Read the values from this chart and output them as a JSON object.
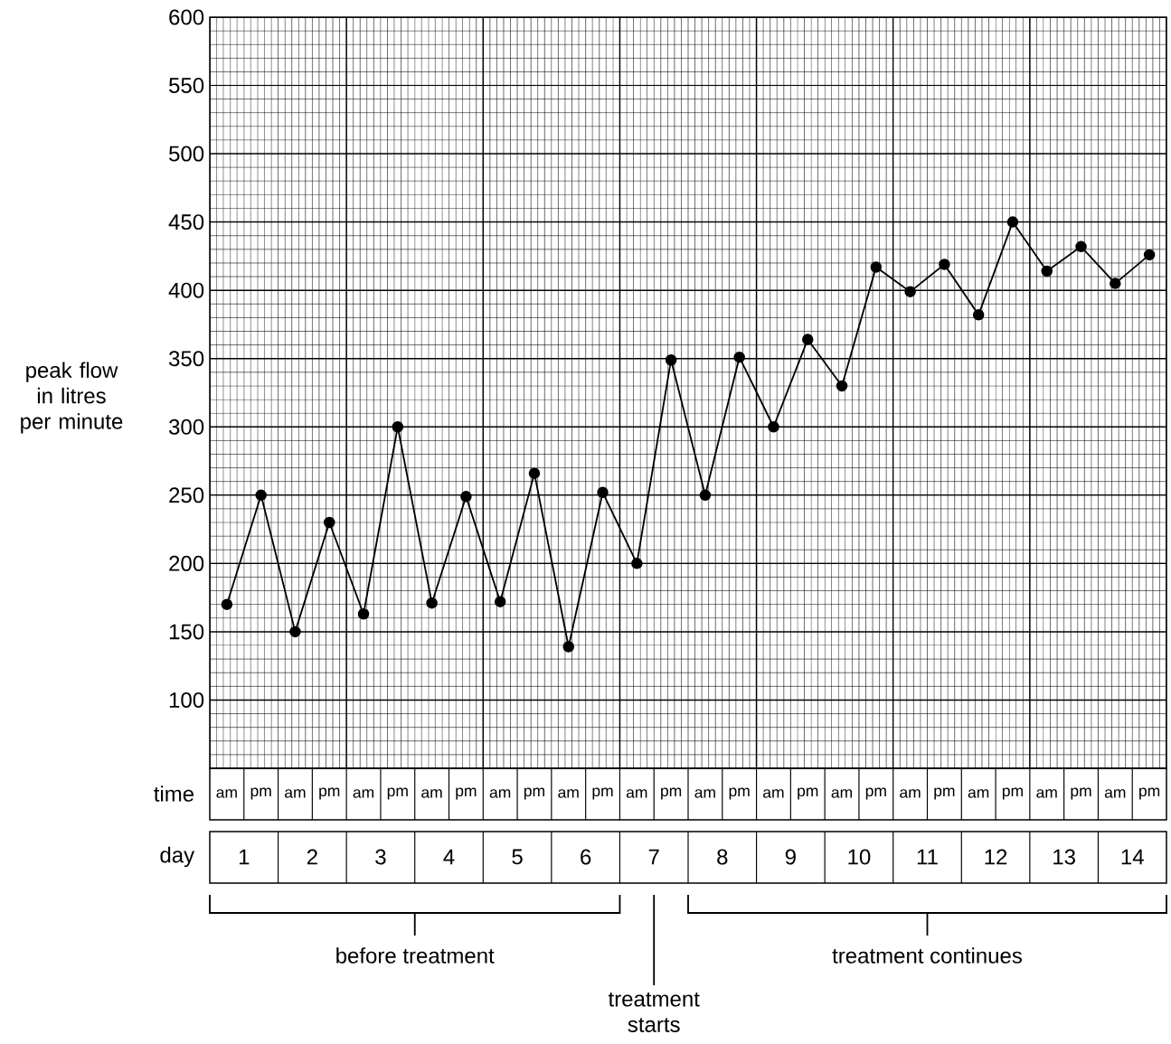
{
  "chart_data": {
    "type": "line",
    "ylabel": "peak flow in litres per minute",
    "xlabel": "time",
    "categories": [
      "am",
      "pm",
      "am",
      "pm",
      "am",
      "pm",
      "am",
      "pm",
      "am",
      "pm",
      "am",
      "pm",
      "am",
      "pm",
      "am",
      "pm",
      "am",
      "pm",
      "am",
      "pm",
      "am",
      "pm",
      "am",
      "pm",
      "am",
      "pm",
      "am",
      "pm"
    ],
    "values": [
      170,
      250,
      150,
      230,
      163,
      300,
      171,
      249,
      172,
      266,
      139,
      252,
      200,
      349,
      250,
      351,
      300,
      364,
      330,
      417,
      399,
      419,
      382,
      450,
      414,
      432,
      405,
      426
    ],
    "color": "#000000",
    "ylim": [
      50,
      600
    ],
    "yticks": [
      100,
      150,
      200,
      250,
      300,
      350,
      400,
      450,
      500,
      550,
      600
    ],
    "grid": true,
    "marker": "circle",
    "line_style": "solid",
    "annotations": [
      "day",
      "1",
      "2",
      "3",
      "4",
      "5",
      "6",
      "7",
      "8",
      "9",
      "10",
      "11",
      "12",
      "13",
      "14",
      "before treatment",
      "treatment starts",
      "treatment continues"
    ]
  }
}
